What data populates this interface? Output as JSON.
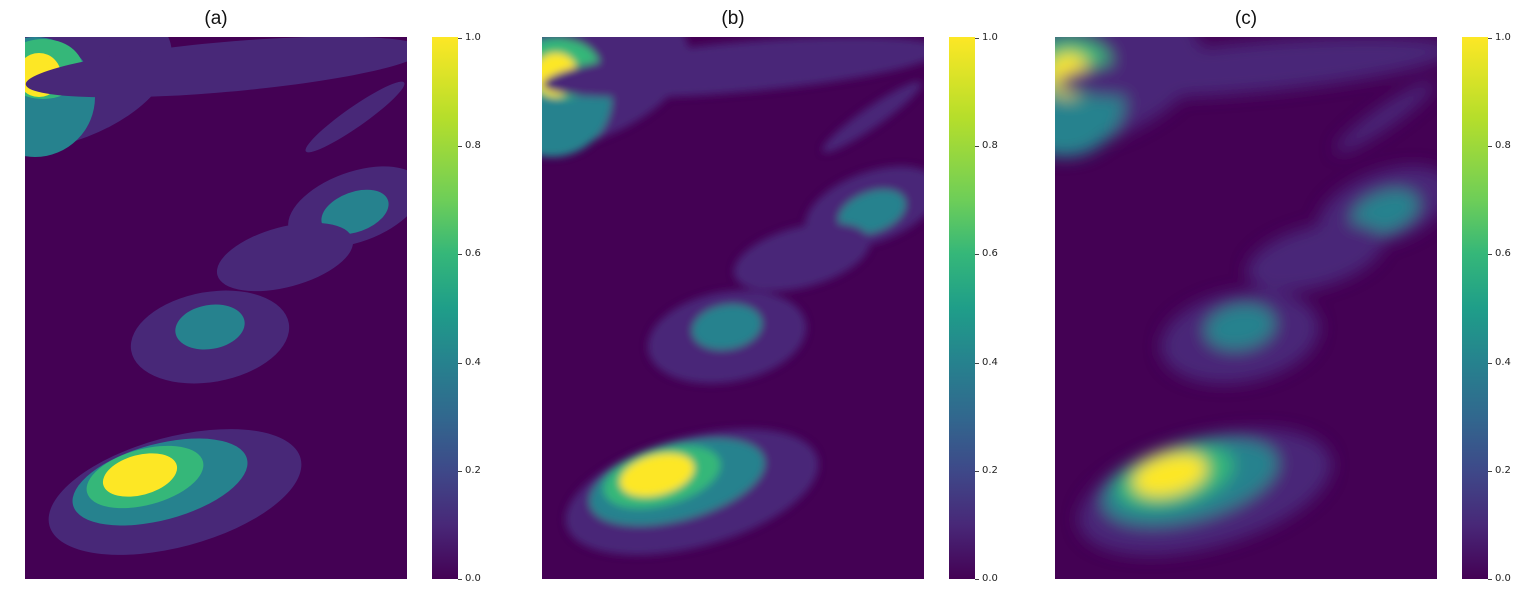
{
  "chart_data": [
    {
      "type": "heatmap",
      "title": "(a)",
      "colormap": "viridis",
      "colorbar": {
        "min": 0.0,
        "max": 1.0,
        "ticks": [
          "0.0",
          "0.2",
          "0.4",
          "0.6",
          "0.8",
          "1.0"
        ]
      },
      "blur": 0
    },
    {
      "type": "heatmap",
      "title": "(b)",
      "colormap": "viridis",
      "colorbar": {
        "min": 0.0,
        "max": 1.0,
        "ticks": [
          "0.0",
          "0.2",
          "0.4",
          "0.6",
          "0.8",
          "1.0"
        ]
      },
      "blur": 1
    },
    {
      "type": "heatmap",
      "title": "(c)",
      "colormap": "viridis",
      "colorbar": {
        "min": 0.0,
        "max": 1.0,
        "ticks": [
          "0.0",
          "0.2",
          "0.4",
          "0.6",
          "0.8",
          "1.0"
        ]
      },
      "blur": 2
    }
  ],
  "colors": {
    "background": "#440154",
    "low": "#482878",
    "mid": "#26828e",
    "high": "#35b779",
    "peak": "#fde725"
  }
}
